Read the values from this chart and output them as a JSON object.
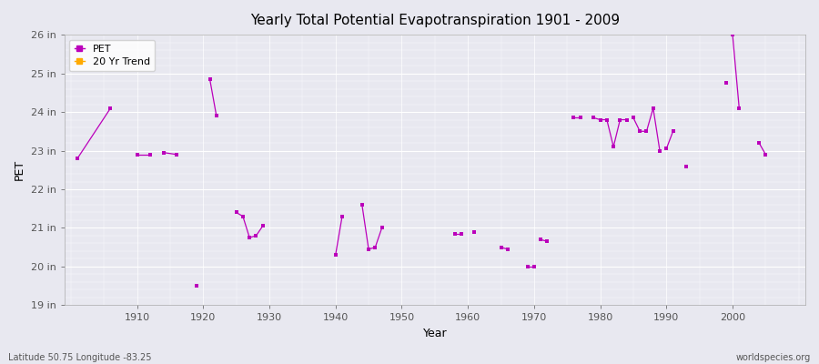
{
  "title": "Yearly Total Potential Evapotranspiration 1901 - 2009",
  "xlabel": "Year",
  "ylabel": "PET",
  "footnote_left": "Latitude 50.75 Longitude -83.25",
  "footnote_right": "worldspecies.org",
  "ylim": [
    19,
    26
  ],
  "ytick_labels": [
    "19 in",
    "20 in",
    "21 in",
    "22 in",
    "23 in",
    "24 in",
    "25 in",
    "26 in"
  ],
  "ytick_values": [
    19,
    20,
    21,
    22,
    23,
    24,
    25,
    26
  ],
  "xtick_values": [
    1910,
    1920,
    1930,
    1940,
    1950,
    1960,
    1970,
    1980,
    1990,
    2000
  ],
  "pet_color": "#bb00bb",
  "trend_color": "#ffaa00",
  "bg_color": "#e8e8f0",
  "plot_bg_color": "#e8e8f0",
  "grid_color": "#ffffff",
  "legend_entries": [
    "PET",
    "20 Yr Trend"
  ],
  "segments": [
    [
      [
        1901,
        22.8
      ],
      [
        1906,
        24.1
      ]
    ],
    [
      [
        1910,
        22.9
      ],
      [
        1912,
        22.9
      ]
    ],
    [
      [
        1914,
        22.95
      ],
      [
        1916,
        22.9
      ]
    ],
    [
      [
        1919,
        19.5
      ]
    ],
    [
      [
        1921,
        24.85
      ],
      [
        1922,
        23.9
      ]
    ],
    [
      [
        1925,
        21.4
      ],
      [
        1926,
        21.3
      ],
      [
        1927,
        20.75
      ],
      [
        1928,
        20.8
      ],
      [
        1929,
        21.05
      ]
    ],
    [
      [
        1940,
        20.3
      ],
      [
        1941,
        21.3
      ]
    ],
    [
      [
        1944,
        21.6
      ],
      [
        1945,
        20.45
      ],
      [
        1946,
        20.5
      ],
      [
        1947,
        21.0
      ]
    ],
    [
      [
        1958,
        20.85
      ],
      [
        1959,
        20.85
      ]
    ],
    [
      [
        1961,
        20.9
      ]
    ],
    [
      [
        1965,
        20.5
      ],
      [
        1966,
        20.45
      ]
    ],
    [
      [
        1969,
        20.0
      ],
      [
        1970,
        20.0
      ]
    ],
    [
      [
        1971,
        20.7
      ],
      [
        1972,
        20.65
      ]
    ],
    [
      [
        1976,
        23.85
      ],
      [
        1977,
        23.85
      ]
    ],
    [
      [
        1979,
        23.85
      ],
      [
        1980,
        23.8
      ],
      [
        1981,
        23.8
      ],
      [
        1982,
        23.1
      ],
      [
        1983,
        23.8
      ],
      [
        1984,
        23.8
      ]
    ],
    [
      [
        1985,
        23.85
      ],
      [
        1986,
        23.5
      ],
      [
        1987,
        23.5
      ],
      [
        1988,
        24.1
      ],
      [
        1989,
        23.0
      ]
    ],
    [
      [
        1990,
        23.05
      ],
      [
        1991,
        23.5
      ]
    ],
    [
      [
        1993,
        22.6
      ]
    ],
    [
      [
        1999,
        24.75
      ]
    ],
    [
      [
        2000,
        26.0
      ],
      [
        2001,
        24.1
      ]
    ],
    [
      [
        2004,
        23.2
      ],
      [
        2005,
        22.9
      ]
    ]
  ]
}
